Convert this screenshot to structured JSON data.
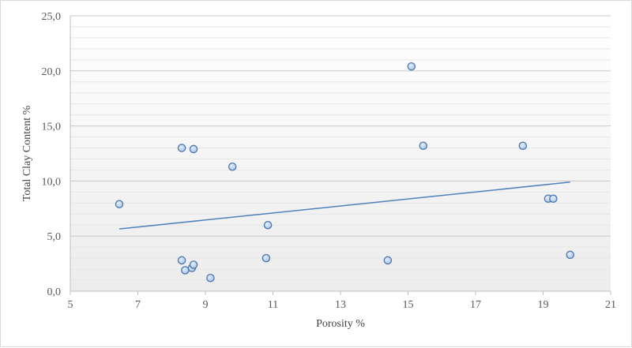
{
  "chart_data": {
    "type": "scatter",
    "title": "",
    "xlabel": "Porosity %",
    "ylabel": "Total Clay Content %",
    "xlim": [
      5,
      21
    ],
    "ylim": [
      0,
      25
    ],
    "x_ticks": [
      5,
      7,
      9,
      11,
      13,
      15,
      17,
      19,
      21
    ],
    "x_tick_labels": [
      "5",
      "7",
      "9",
      "11",
      "13",
      "15",
      "17",
      "19",
      "21"
    ],
    "y_ticks": [
      0,
      5,
      10,
      15,
      20,
      25
    ],
    "y_tick_labels": [
      "0,0",
      "5,0",
      "10,0",
      "15,0",
      "20,0",
      "25,0"
    ],
    "grid": "horizontal major and minor",
    "legend": "none",
    "marker_color": "#a9c4e8",
    "marker_edge_color": "#4a76ae",
    "trendline_color": "#4f81bd",
    "points": [
      {
        "x": 6.45,
        "y": 7.9
      },
      {
        "x": 8.3,
        "y": 13.0
      },
      {
        "x": 8.65,
        "y": 12.9
      },
      {
        "x": 8.3,
        "y": 2.8
      },
      {
        "x": 8.4,
        "y": 1.9
      },
      {
        "x": 8.6,
        "y": 2.1
      },
      {
        "x": 8.65,
        "y": 2.4
      },
      {
        "x": 9.15,
        "y": 1.2
      },
      {
        "x": 9.8,
        "y": 11.3
      },
      {
        "x": 10.8,
        "y": 3.0
      },
      {
        "x": 10.85,
        "y": 6.0
      },
      {
        "x": 14.4,
        "y": 2.8
      },
      {
        "x": 15.1,
        "y": 20.4
      },
      {
        "x": 15.45,
        "y": 13.2
      },
      {
        "x": 18.4,
        "y": 13.2
      },
      {
        "x": 19.15,
        "y": 8.4
      },
      {
        "x": 19.3,
        "y": 8.4
      },
      {
        "x": 19.8,
        "y": 3.3
      }
    ],
    "trendline": {
      "x": [
        6.45,
        19.8
      ],
      "y": [
        5.65,
        9.9
      ]
    }
  }
}
